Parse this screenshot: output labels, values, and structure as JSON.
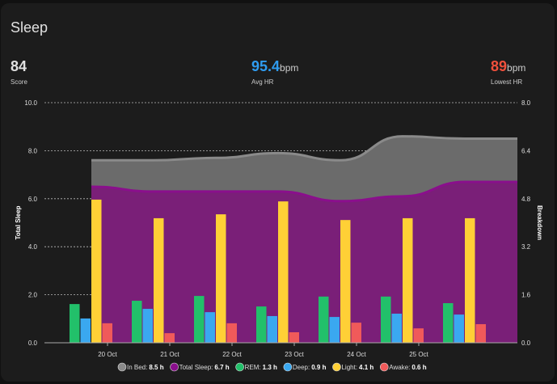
{
  "title": "Sleep",
  "stats": [
    {
      "value": "84",
      "unit": "",
      "label": "Score",
      "color": "#ffffff"
    },
    {
      "value": "95.4",
      "unit": "bpm",
      "label": "Avg HR",
      "color": "#2f9cf0"
    },
    {
      "value": "89",
      "unit": "bpm",
      "label": "Lowest HR",
      "color": "#f0503c"
    }
  ],
  "chart_data": {
    "type": "bar+area",
    "categories": [
      "20 Oct",
      "21 Oct",
      "22 Oct",
      "23 Oct",
      "24 Oct",
      "25 Oct",
      ""
    ],
    "left_axis": {
      "label": "Total Sleep",
      "range": [
        0,
        10
      ],
      "ticks": [
        "0.0",
        "2.0",
        "4.0",
        "6.0",
        "8.0",
        "10.0"
      ]
    },
    "right_axis": {
      "label": "Breakdown",
      "range": [
        0,
        8
      ],
      "ticks": [
        "0.0",
        "1.6",
        "3.2",
        "4.8",
        "6.4",
        "8.0"
      ]
    },
    "area_series": [
      {
        "name": "In Bed",
        "color": "#6b6b6b",
        "line": "#8a8a8a",
        "values": [
          7.6,
          7.6,
          7.7,
          7.9,
          7.6,
          8.6,
          8.5
        ]
      },
      {
        "name": "Total Sleep",
        "color": "#7a1f78",
        "line": "#8a0f8c",
        "values": [
          6.5,
          6.3,
          6.3,
          6.3,
          5.9,
          6.1,
          6.7
        ]
      }
    ],
    "bar_series": [
      {
        "name": "REM",
        "color": "#22c06a",
        "values": [
          1.29,
          1.4,
          1.56,
          1.21,
          1.54,
          1.54,
          1.32
        ]
      },
      {
        "name": "Deep",
        "color": "#3aa8f0",
        "values": [
          0.81,
          1.13,
          1.02,
          0.89,
          0.86,
          0.97,
          0.94
        ]
      },
      {
        "name": "Light",
        "color": "#ffd036",
        "values": [
          4.77,
          4.15,
          4.28,
          4.71,
          4.09,
          4.15,
          4.15
        ]
      },
      {
        "name": "Awake",
        "color": "#f05a5a",
        "values": [
          0.65,
          0.32,
          0.65,
          0.35,
          0.67,
          0.48,
          0.62
        ]
      }
    ],
    "legend": [
      {
        "label": "In Bed:",
        "value": "8.5 h",
        "color": "#8a8a8a"
      },
      {
        "label": "Total Sleep:",
        "value": "6.7 h",
        "color": "#8a0f8c"
      },
      {
        "label": "REM:",
        "value": "1.3 h",
        "color": "#22c06a"
      },
      {
        "label": "Deep:",
        "value": "0.9 h",
        "color": "#3aa8f0"
      },
      {
        "label": "Light:",
        "value": "4.1 h",
        "color": "#ffd036"
      },
      {
        "label": "Awake:",
        "value": "0.6 h",
        "color": "#f05a5a"
      }
    ]
  }
}
